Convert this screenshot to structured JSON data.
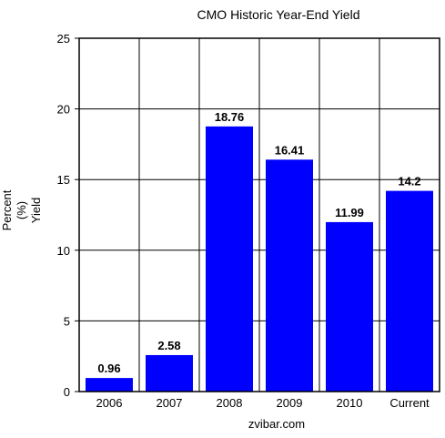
{
  "chart_data": {
    "type": "bar",
    "title": "CMO Historic Year-End Yield",
    "ylabel_lines": [
      "Percent",
      "(%)",
      "Yield"
    ],
    "xlabel": "",
    "categories": [
      "2006",
      "2007",
      "2008",
      "2009",
      "2010",
      "Current"
    ],
    "values": [
      0.96,
      2.58,
      18.76,
      16.41,
      11.99,
      14.2
    ],
    "data_labels": [
      "0.96",
      "2.58",
      "18.76",
      "16.41",
      "11.99",
      "14.2"
    ],
    "ylim": [
      0,
      25
    ],
    "yticks": [
      0,
      5,
      10,
      15,
      20,
      25
    ],
    "grid": true,
    "bar_color": "#0000ff",
    "footer": "zvibar.com"
  }
}
